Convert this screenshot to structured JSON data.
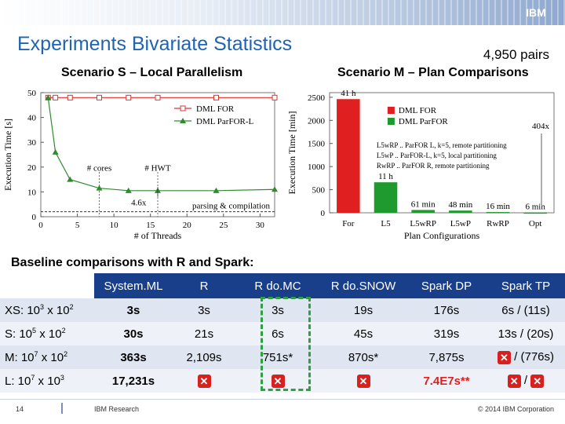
{
  "header": {
    "logo_text": "IBM"
  },
  "slide": {
    "title": "Experiments Bivariate Statistics",
    "pairs_note": "4,950 pairs",
    "subtitle_s": "Scenario S – Local Parallelism",
    "subtitle_m": "Scenario M – Plan Comparisons",
    "baseline_label": "Baseline comparisons with R and Spark:"
  },
  "chart_data": [
    {
      "type": "line",
      "ylabel": "Execution Time [s]",
      "xlabel": "# of Threads",
      "xlim": [
        0,
        32
      ],
      "ylim": [
        0,
        50
      ],
      "xticks": [
        0,
        5,
        10,
        15,
        20,
        25,
        30
      ],
      "yticks": [
        0,
        10,
        20,
        30,
        40,
        50
      ],
      "series": [
        {
          "name": "DML FOR",
          "color": "#e03030",
          "marker": "square",
          "x": [
            1,
            2,
            4,
            8,
            12,
            16,
            24,
            32
          ],
          "y": [
            48,
            48,
            48,
            48,
            48,
            48,
            48,
            48
          ]
        },
        {
          "name": "DML ParFOR-L",
          "color": "#2e8b2e",
          "marker": "triangle",
          "x": [
            1,
            2,
            4,
            8,
            12,
            16,
            24,
            32
          ],
          "y": [
            48,
            26,
            15,
            11.5,
            10.5,
            10.5,
            10.5,
            11
          ]
        }
      ],
      "reference_line": {
        "y": 2,
        "label": "parsing & compilation"
      },
      "vlines": [
        {
          "x": 8,
          "label": "# cores"
        },
        {
          "x": 16,
          "label": "# HWT"
        }
      ],
      "annotations": [
        "4.6x"
      ],
      "legend": "top-right"
    },
    {
      "type": "bar",
      "ylabel": "Execution Time [min]",
      "xlabel": "Plan Configurations",
      "ylim": [
        0,
        2600
      ],
      "yticks": [
        0,
        500,
        1000,
        1500,
        2000,
        2500
      ],
      "categories": [
        "For",
        "L5",
        "L5wRP",
        "L5wP",
        "RwRP",
        "Opt"
      ],
      "values": [
        2460,
        660,
        61,
        48,
        16,
        6
      ],
      "bar_labels": [
        "41 h",
        "11 h",
        "61 min",
        "48 min",
        "16 min",
        "6 min"
      ],
      "series_colors": [
        "#e02020",
        "#1f9a2e",
        "#1f9a2e",
        "#1f9a2e",
        "#1f9a2e",
        "#1f9a2e"
      ],
      "legend": [
        {
          "name": "DML FOR",
          "color": "#e02020"
        },
        {
          "name": "DML ParFOR",
          "color": "#1f9a2e"
        }
      ],
      "legend_notes": [
        "L5wRP .. ParFOR  L, k=5, remote partitioning",
        "L5wP .. ParFOR-L, k=5, local partitioning",
        "RwRP .. ParFOR  R, remote partitioning"
      ],
      "annotations": [
        "404x"
      ]
    }
  ],
  "table": {
    "headers": [
      "System.ML",
      "R",
      "R do.MC",
      "R do.SNOW",
      "Spark DP",
      "Spark TP"
    ],
    "rows": [
      {
        "base": "XS: 10",
        "e1": "3",
        "mid": " x 10",
        "e2": "2",
        "cells": [
          "3s",
          "3s",
          "3s",
          "19s",
          "176s",
          "6s / (11s)"
        ]
      },
      {
        "base": "S: 10",
        "e1": "5",
        "mid": " x 10",
        "e2": "2",
        "cells": [
          "30s",
          "21s",
          "6s",
          "45s",
          "319s",
          "13s / (20s)"
        ]
      },
      {
        "base": "M: 10",
        "e1": "7",
        "mid": " x 10",
        "e2": "2",
        "cells": [
          "363s",
          "2,109s",
          "751s*",
          "870s*",
          "7,875s",
          "/ (776s)"
        ]
      },
      {
        "base": "L: 10",
        "e1": "7",
        "mid": " x 10",
        "e2": "3",
        "cells": [
          "17,231s",
          "",
          "",
          "",
          "7.4E7s**",
          "/"
        ]
      }
    ]
  },
  "footer": {
    "page_number": "14",
    "org": "IBM Research",
    "copyright": "© 2014 IBM Corporation"
  }
}
